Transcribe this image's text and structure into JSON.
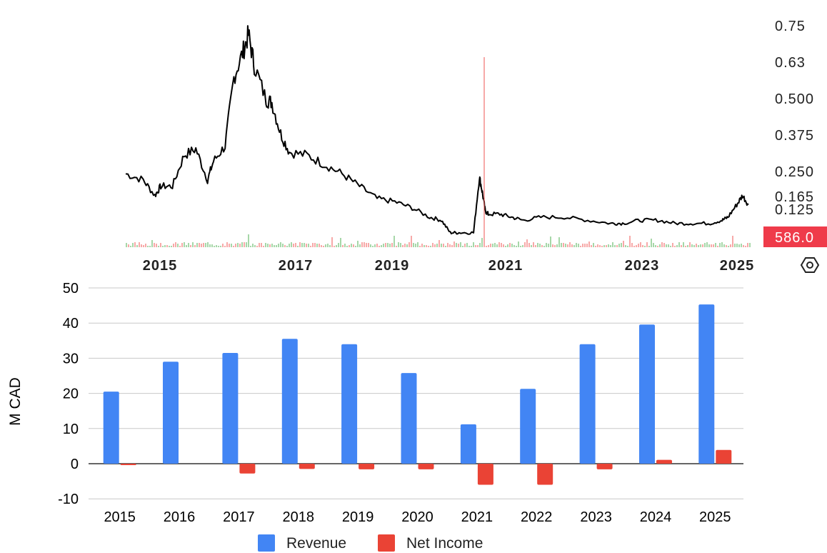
{
  "price_chart": {
    "y_ticks": [
      "0.75",
      "0.63",
      "0.500",
      "0.375",
      "0.250",
      "0.125"
    ],
    "last_price_label": "0.165",
    "volume_badge": "586.0",
    "year_ticks": [
      "2015",
      "2017",
      "2019",
      "2021",
      "2023",
      "2025"
    ],
    "settings_icon": "hexagon-settings-icon",
    "colors": {
      "line": "#000000",
      "badge": "#ef3b4a",
      "vol_up": "#4caf50",
      "vol_down": "#ef5350"
    }
  },
  "chart_data": [
    {
      "type": "line",
      "xlim": [
        2014.5,
        2025.2
      ],
      "ylim": [
        0.07,
        0.78
      ],
      "series": [
        {
          "x": [
            2014.5,
            2014.8,
            2015.0,
            2015.1,
            2015.3,
            2015.5,
            2015.7,
            2015.9,
            2016.0,
            2016.2,
            2016.35,
            2016.5,
            2016.6,
            2016.7,
            2016.9,
            2017.0,
            2017.15,
            2017.3,
            2017.6,
            2017.9,
            2018.2,
            2018.5,
            2018.8,
            2019.1,
            2019.4,
            2019.7,
            2019.9,
            2020.05,
            2020.2,
            2020.45,
            2020.55,
            2020.6,
            2020.65,
            2020.7,
            2020.9,
            2021.1,
            2021.3,
            2021.6,
            2022.0,
            2022.4,
            2022.8,
            2023.0,
            2023.3,
            2023.6,
            2023.9,
            2024.2,
            2024.5,
            2024.7,
            2024.8,
            2024.95,
            2025.05,
            2025.15
          ],
          "y": [
            0.27,
            0.25,
            0.2,
            0.23,
            0.23,
            0.33,
            0.35,
            0.25,
            0.31,
            0.36,
            0.58,
            0.66,
            0.72,
            0.62,
            0.51,
            0.5,
            0.4,
            0.34,
            0.33,
            0.3,
            0.27,
            0.23,
            0.19,
            0.18,
            0.16,
            0.13,
            0.12,
            0.08,
            0.08,
            0.08,
            0.26,
            0.21,
            0.15,
            0.14,
            0.14,
            0.13,
            0.12,
            0.13,
            0.13,
            0.12,
            0.11,
            0.11,
            0.12,
            0.12,
            0.11,
            0.11,
            0.11,
            0.12,
            0.13,
            0.17,
            0.2,
            0.17
          ]
        }
      ]
    },
    {
      "type": "bar",
      "categories": [
        "2015",
        "2016",
        "2017",
        "2018",
        "2019",
        "2020",
        "2021",
        "2022",
        "2023",
        "2024",
        "2025"
      ],
      "series": [
        {
          "name": "Revenue",
          "color": "#4285f4",
          "values": [
            20.5,
            29,
            31.5,
            35.5,
            34,
            25.8,
            11.2,
            21.3,
            34,
            39.6,
            45.3
          ]
        },
        {
          "name": "Net Income",
          "color": "#ea4335",
          "values": [
            -0.4,
            0,
            -2.8,
            -1.5,
            -1.6,
            -1.6,
            -6,
            -6,
            -1.6,
            1.1,
            3.9
          ]
        }
      ],
      "ylim": [
        -10,
        50
      ],
      "y_ticks": [
        50,
        40,
        30,
        20,
        10,
        0,
        -10
      ],
      "ylabel": "M CAD",
      "legend": "bottom-center"
    }
  ]
}
